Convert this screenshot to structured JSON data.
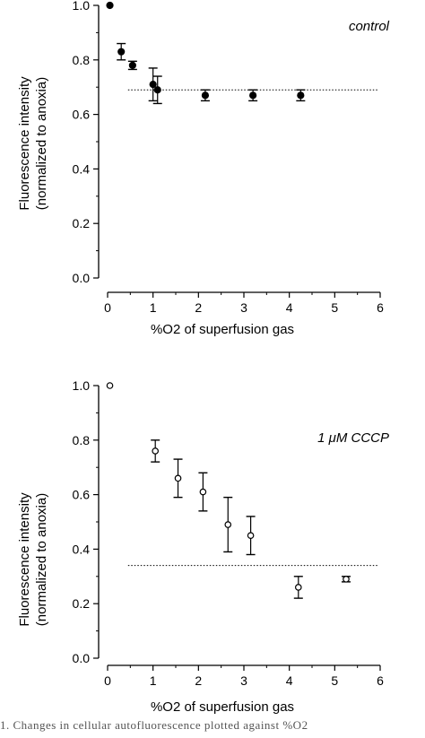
{
  "chart_data": [
    {
      "type": "scatter",
      "annotation": "control",
      "xlabel": "%O2 of superfusion gas",
      "ylabel_line1": "Fluorescence intensity",
      "ylabel_line2": "(normalized to anoxia)",
      "xlim": [
        0,
        6
      ],
      "ylim": [
        0,
        1
      ],
      "x_ticks": [
        "0",
        "1",
        "2",
        "3",
        "4",
        "5",
        "6"
      ],
      "y_ticks": [
        "0.0",
        "0.2",
        "0.4",
        "0.6",
        "0.8",
        "1.0"
      ],
      "marker": "filled",
      "reference_line": 0.69,
      "points": [
        {
          "x": 0.05,
          "y": 1.0,
          "err": 0
        },
        {
          "x": 0.3,
          "y": 0.83,
          "err": 0.03
        },
        {
          "x": 0.55,
          "y": 0.78,
          "err": 0.015
        },
        {
          "x": 1.0,
          "y": 0.71,
          "err": 0.06
        },
        {
          "x": 1.1,
          "y": 0.69,
          "err": 0.05
        },
        {
          "x": 2.15,
          "y": 0.67,
          "err": 0.02
        },
        {
          "x": 3.2,
          "y": 0.67,
          "err": 0.02
        },
        {
          "x": 4.25,
          "y": 0.67,
          "err": 0.02
        }
      ]
    },
    {
      "type": "scatter",
      "annotation": "1 μM CCCP",
      "xlabel": "%O2 of superfusion gas",
      "ylabel_line1": "Fluorescence intensity",
      "ylabel_line2": "(normalized to anoxia)",
      "xlim": [
        0,
        6
      ],
      "ylim": [
        0,
        1
      ],
      "x_ticks": [
        "0",
        "1",
        "2",
        "3",
        "4",
        "5",
        "6"
      ],
      "y_ticks": [
        "0.0",
        "0.2",
        "0.4",
        "0.6",
        "0.8",
        "1.0"
      ],
      "marker": "open",
      "reference_line": 0.34,
      "points": [
        {
          "x": 0.05,
          "y": 1.0,
          "err": 0
        },
        {
          "x": 1.05,
          "y": 0.76,
          "err": 0.04
        },
        {
          "x": 1.55,
          "y": 0.66,
          "err": 0.07
        },
        {
          "x": 2.1,
          "y": 0.61,
          "err": 0.07
        },
        {
          "x": 2.65,
          "y": 0.49,
          "err": 0.1
        },
        {
          "x": 3.15,
          "y": 0.45,
          "err": 0.07
        },
        {
          "x": 4.2,
          "y": 0.26,
          "err": 0.04
        },
        {
          "x": 5.25,
          "y": 0.29,
          "err": 0.01
        }
      ]
    }
  ],
  "caption": "1. Changes in cellular autofluorescence plotted against %O2"
}
